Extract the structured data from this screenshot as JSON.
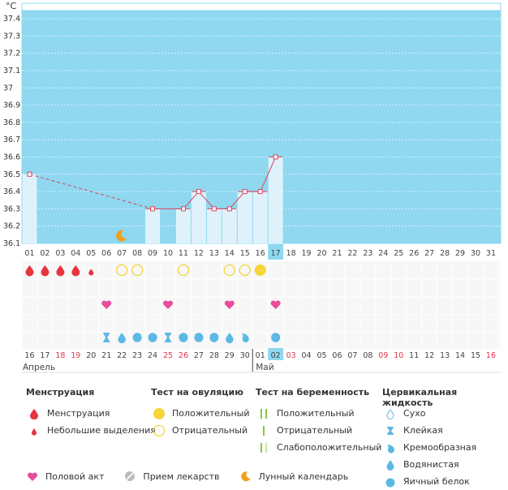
{
  "unit": "°C",
  "y_ticks": [
    "37.4",
    "37.3",
    "37.2",
    "37.1",
    "37",
    "36.9",
    "36.8",
    "36.7",
    "36.6",
    "36.5",
    "36.4",
    "36.3",
    "36.2",
    "36.1"
  ],
  "cycle_days": [
    "01",
    "02",
    "03",
    "04",
    "05",
    "06",
    "07",
    "08",
    "09",
    "10",
    "11",
    "12",
    "13",
    "14",
    "15",
    "16",
    "17",
    "18",
    "19",
    "20",
    "21",
    "22",
    "23",
    "24",
    "25",
    "26",
    "27",
    "28",
    "29",
    "30",
    "31"
  ],
  "current_day_index": 16,
  "dates": [
    {
      "d": "16",
      "red": false
    },
    {
      "d": "17",
      "red": false
    },
    {
      "d": "18",
      "red": true
    },
    {
      "d": "19",
      "red": true
    },
    {
      "d": "20",
      "red": false
    },
    {
      "d": "21",
      "red": false
    },
    {
      "d": "22",
      "red": false
    },
    {
      "d": "23",
      "red": false
    },
    {
      "d": "24",
      "red": false
    },
    {
      "d": "25",
      "red": true
    },
    {
      "d": "26",
      "red": true
    },
    {
      "d": "27",
      "red": false
    },
    {
      "d": "28",
      "red": false
    },
    {
      "d": "29",
      "red": false
    },
    {
      "d": "30",
      "red": false
    },
    {
      "d": "01",
      "red": false
    },
    {
      "d": "02",
      "red": false
    },
    {
      "d": "03",
      "red": true
    },
    {
      "d": "04",
      "red": false
    },
    {
      "d": "05",
      "red": false
    },
    {
      "d": "06",
      "red": false
    },
    {
      "d": "07",
      "red": false
    },
    {
      "d": "08",
      "red": false
    },
    {
      "d": "09",
      "red": true
    },
    {
      "d": "10",
      "red": true
    },
    {
      "d": "11",
      "red": false
    },
    {
      "d": "12",
      "red": false
    },
    {
      "d": "13",
      "red": false
    },
    {
      "d": "14",
      "red": false
    },
    {
      "d": "15",
      "red": false
    },
    {
      "d": "16",
      "red": true
    }
  ],
  "months": {
    "april": "Апрель",
    "may": "Май"
  },
  "chart_data": {
    "type": "line",
    "ylabel": "°C",
    "ylim": [
      36.1,
      37.45
    ],
    "x": [
      "01",
      "02",
      "03",
      "04",
      "05",
      "06",
      "07",
      "08",
      "09",
      "10",
      "11",
      "12",
      "13",
      "14",
      "15",
      "16",
      "17"
    ],
    "temperatures": [
      {
        "day": 1,
        "value": 36.5
      },
      {
        "day": 9,
        "value": 36.3
      },
      {
        "day": 11,
        "value": 36.3
      },
      {
        "day": 12,
        "value": 36.4
      },
      {
        "day": 13,
        "value": 36.3
      },
      {
        "day": 14,
        "value": 36.3
      },
      {
        "day": 15,
        "value": 36.4
      },
      {
        "day": 16,
        "value": 36.4
      },
      {
        "day": 17,
        "value": 36.6
      }
    ],
    "bar_days": [
      1,
      9,
      11,
      12,
      13,
      14,
      15,
      16,
      17
    ],
    "dashed_segment": [
      1,
      9
    ],
    "moon_day": 7
  },
  "marks": {
    "menstruation": [
      1,
      2,
      3,
      4
    ],
    "light_discharge": [
      5
    ],
    "ovulation_negative": [
      7,
      8,
      11,
      14,
      15
    ],
    "ovulation_positive": [
      16
    ],
    "intercourse": [
      6,
      10,
      14,
      17
    ],
    "fluid": [
      {
        "day": 6,
        "type": "sticky"
      },
      {
        "day": 7,
        "type": "watery"
      },
      {
        "day": 8,
        "type": "egg-white"
      },
      {
        "day": 9,
        "type": "egg-white"
      },
      {
        "day": 10,
        "type": "sticky"
      },
      {
        "day": 11,
        "type": "egg-white"
      },
      {
        "day": 12,
        "type": "egg-white"
      },
      {
        "day": 13,
        "type": "egg-white"
      },
      {
        "day": 14,
        "type": "watery"
      },
      {
        "day": 15,
        "type": "creamy"
      },
      {
        "day": 17,
        "type": "egg-white"
      }
    ]
  },
  "legend": {
    "menstruation": {
      "title": "Менструация",
      "items": [
        "Менструация",
        "Небольшие выделения"
      ]
    },
    "ovulation": {
      "title": "Тест на овуляцию",
      "items": [
        "Положительный",
        "Отрицательный"
      ]
    },
    "pregnancy": {
      "title": "Тест на беременность",
      "items": [
        "Положительный",
        "Отрицательный",
        "Слабоположительный"
      ]
    },
    "fluid": {
      "title": "Цервикальная жидкость",
      "items": [
        "Сухо",
        "Клейкая",
        "Кремообразная",
        "Водянистая",
        "Яичный белок"
      ]
    },
    "bottom": [
      "Половой акт",
      "Прием лекарств",
      "Лунный календарь"
    ]
  },
  "colors": {
    "sky": "#8fd8f0",
    "bar": "#dff2fb",
    "line": "#d9455f",
    "red": "#e8343f",
    "yellow": "#f5d53a",
    "pink": "#ea4c9c",
    "blue": "#5cb8e4",
    "orange": "#f0a020",
    "green": "#8cc63f"
  }
}
